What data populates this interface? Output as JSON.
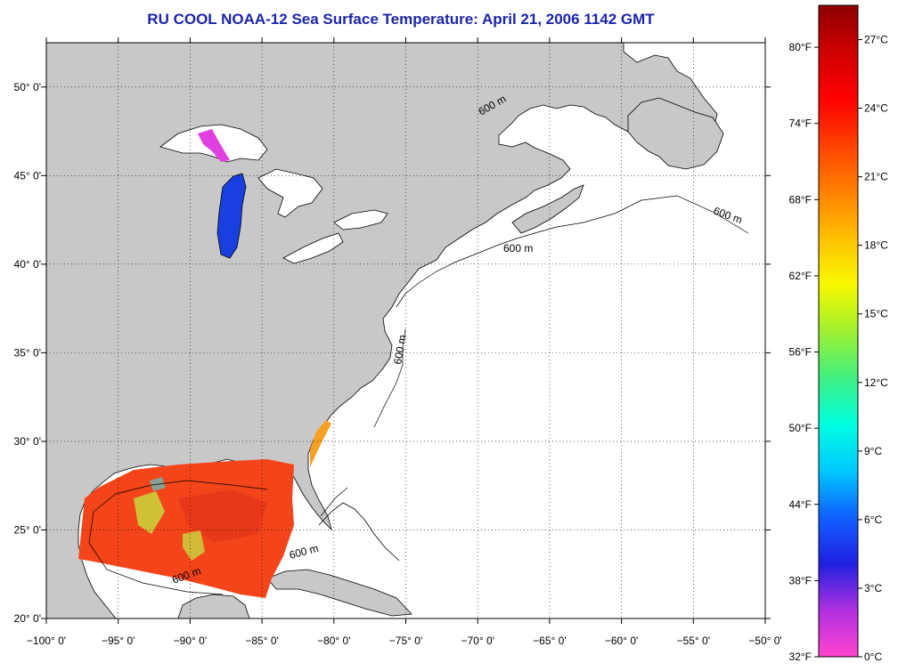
{
  "title": "RU COOL  NOAA-12  Sea Surface Temperature:  April 21, 2006 1142 GMT",
  "map": {
    "lon_range": [
      -100,
      -50
    ],
    "lat_range": [
      20,
      52.5
    ],
    "lon_ticks": [
      {
        "value": -100,
        "label": "−100° 0'"
      },
      {
        "value": -95,
        "label": "−95° 0'"
      },
      {
        "value": -90,
        "label": "−90° 0'"
      },
      {
        "value": -85,
        "label": "−85° 0'"
      },
      {
        "value": -80,
        "label": "−80° 0'"
      },
      {
        "value": -75,
        "label": "−75° 0'"
      },
      {
        "value": -70,
        "label": "−70° 0'"
      },
      {
        "value": -65,
        "label": "−65° 0'"
      },
      {
        "value": -60,
        "label": "−60° 0'"
      },
      {
        "value": -55,
        "label": "−55° 0'"
      },
      {
        "value": -50,
        "label": "−50° 0'"
      }
    ],
    "lat_ticks": [
      {
        "value": 20,
        "label": "20° 0'"
      },
      {
        "value": 25,
        "label": "25° 0'"
      },
      {
        "value": 30,
        "label": "30° 0'"
      },
      {
        "value": 35,
        "label": "35° 0'"
      },
      {
        "value": 40,
        "label": "40° 0'"
      },
      {
        "value": 45,
        "label": "45° 0'"
      },
      {
        "value": 50,
        "label": "50° 0'"
      }
    ],
    "isobath_label": "600 m",
    "grid": true,
    "colors": {
      "land": "#c8c8c8",
      "ocean": "#ffffff",
      "lake_cold": "#1a3fe0",
      "sst_warm": "#f4441a",
      "sst_patch": "#c8d840"
    }
  },
  "colorbar": {
    "min_c": 0,
    "max_c": 28.5,
    "celsius_labels": [
      {
        "value": 0,
        "label": "0°C"
      },
      {
        "value": 3,
        "label": "3°C"
      },
      {
        "value": 6,
        "label": "6°C"
      },
      {
        "value": 9,
        "label": "9°C"
      },
      {
        "value": 12,
        "label": "12°C"
      },
      {
        "value": 15,
        "label": "15°C"
      },
      {
        "value": 18,
        "label": "18°C"
      },
      {
        "value": 21,
        "label": "21°C"
      },
      {
        "value": 24,
        "label": "24°C"
      },
      {
        "value": 27,
        "label": "27°C"
      }
    ],
    "fahrenheit_labels": [
      {
        "value": 32,
        "label": "32°F"
      },
      {
        "value": 38,
        "label": "38°F"
      },
      {
        "value": 44,
        "label": "44°F"
      },
      {
        "value": 50,
        "label": "50°F"
      },
      {
        "value": 56,
        "label": "56°F"
      },
      {
        "value": 62,
        "label": "62°F"
      },
      {
        "value": 68,
        "label": "68°F"
      },
      {
        "value": 74,
        "label": "74°F"
      },
      {
        "value": 80,
        "label": "80°F"
      }
    ],
    "colors": [
      "#ff44d0",
      "#b030e0",
      "#2020e0",
      "#1060ff",
      "#00c8ff",
      "#00ffe0",
      "#40f080",
      "#a0f030",
      "#f8f800",
      "#ffc000",
      "#ff8000",
      "#ff4000",
      "#ff0000",
      "#d00000",
      "#8c0000"
    ]
  }
}
